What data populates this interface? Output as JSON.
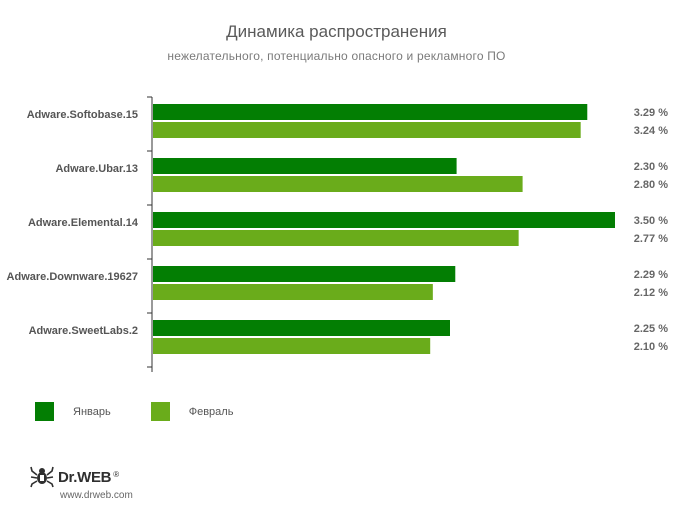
{
  "chart_data": {
    "type": "bar",
    "orientation": "horizontal",
    "title": "Динамика распространения",
    "subtitle": "нежелательного, потенциально опасного и рекламного ПО",
    "categories": [
      "Adware.Softobase.15",
      "Adware.Ubar.13",
      "Adware.Elemental.14",
      "Adware.Downware.19627",
      "Adware.SweetLabs.2"
    ],
    "series": [
      {
        "name": "Январь",
        "color": "#037e03",
        "values": [
          3.29,
          2.3,
          3.5,
          2.29,
          2.25
        ],
        "labels": [
          "3.29 %",
          "2.30 %",
          "3.50 %",
          "2.29 %",
          "2.25 %"
        ]
      },
      {
        "name": "Февраль",
        "color": "#6aac1b",
        "values": [
          3.24,
          2.8,
          2.77,
          2.12,
          2.1
        ],
        "labels": [
          "3.24 %",
          "2.80 %",
          "2.77 %",
          "2.12 %",
          "2.10 %"
        ]
      }
    ],
    "xlim": [
      0,
      3.5
    ],
    "grid": false,
    "legend_position": "bottom-left"
  },
  "legend": {
    "jan": "Январь",
    "feb": "Февраль"
  },
  "logo": {
    "brand": "Dr.WEB",
    "url": "www.drweb.com"
  }
}
